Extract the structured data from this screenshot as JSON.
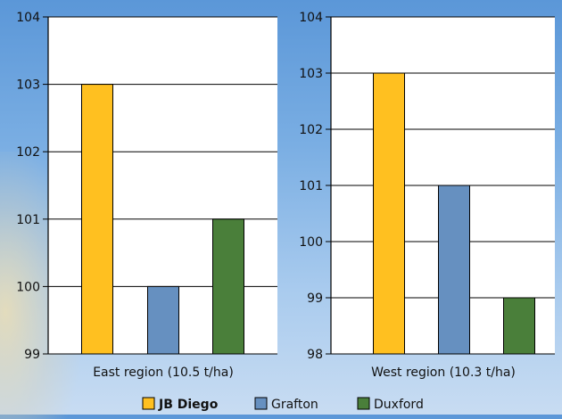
{
  "colors": {
    "JB Diego": "#ffc020",
    "Grafton": "#6690c0",
    "Duxford": "#4a7f3a",
    "panel": "#ffffff",
    "axis": "#000000"
  },
  "legend": [
    {
      "label": "JB Diego",
      "bold": true
    },
    {
      "label": "Grafton",
      "bold": false
    },
    {
      "label": "Duxford",
      "bold": false
    }
  ],
  "chart_data": [
    {
      "type": "bar",
      "xlabel": "East region (10.5 t/ha)",
      "ylim": [
        99,
        104
      ],
      "yticks": [
        99,
        100,
        101,
        102,
        103,
        104
      ],
      "series": [
        {
          "name": "JB Diego",
          "value": 103
        },
        {
          "name": "Grafton",
          "value": 100
        },
        {
          "name": "Duxford",
          "value": 101
        }
      ],
      "grid": true
    },
    {
      "type": "bar",
      "xlabel": "West region (10.3 t/ha)",
      "ylim": [
        98,
        104
      ],
      "yticks": [
        98,
        99,
        100,
        101,
        102,
        103,
        104
      ],
      "series": [
        {
          "name": "JB Diego",
          "value": 103
        },
        {
          "name": "Grafton",
          "value": 101
        },
        {
          "name": "Duxford",
          "value": 99
        }
      ],
      "grid": true
    }
  ]
}
